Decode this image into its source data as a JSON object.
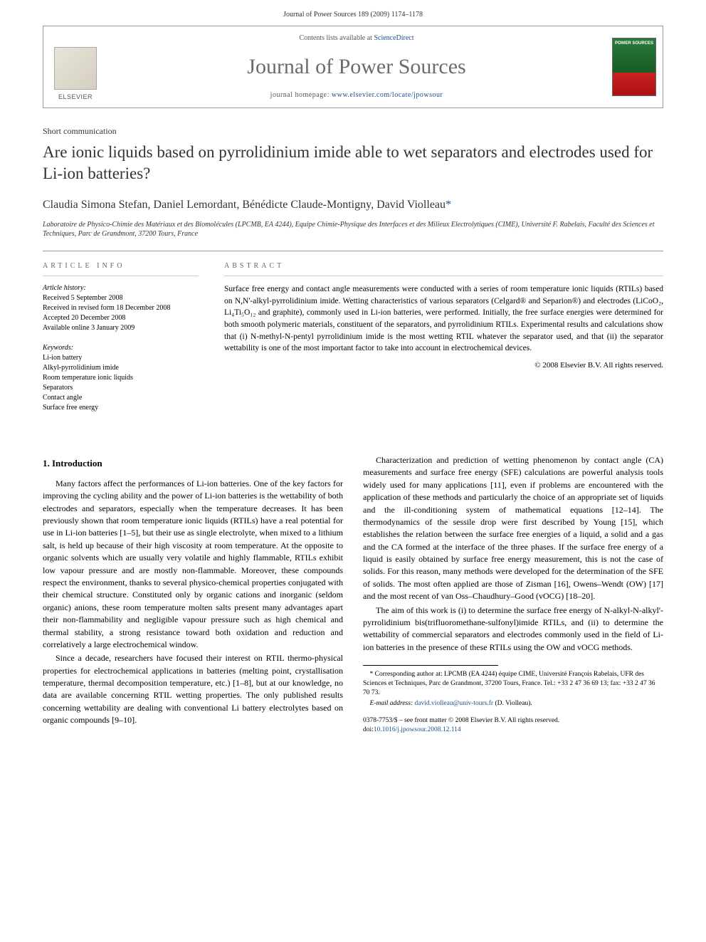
{
  "header": {
    "running_head": "Journal of Power Sources 189 (2009) 1174–1178"
  },
  "masthead": {
    "contents_prefix": "Contents lists available at ",
    "contents_link": "ScienceDirect",
    "journal_name": "Journal of Power Sources",
    "homepage_prefix": "journal homepage: ",
    "homepage_url": "www.elsevier.com/locate/jpowsour",
    "publisher": "ELSEVIER"
  },
  "article": {
    "type": "Short communication",
    "title": "Are ionic liquids based on pyrrolidinium imide able to wet separators and electrodes used for Li-ion batteries?",
    "authors": "Claudia Simona Stefan, Daniel Lemordant, Bénédicte Claude-Montigny, David Violleau",
    "corresponding_mark": "*",
    "affiliation": "Laboratoire de Physico-Chimie des Matériaux et des Biomolécules (LPCMB, EA 4244), Equipe Chimie-Physique des Interfaces et des Milieux Electrolytiques (CIME), Université F. Rabelais, Faculté des Sciences et Techniques, Parc de Grandmont, 37200 Tours, France"
  },
  "info": {
    "heading": "article info",
    "history_label": "Article history:",
    "history": [
      "Received 5 September 2008",
      "Received in revised form 18 December 2008",
      "Accepted 20 December 2008",
      "Available online 3 January 2009"
    ],
    "keywords_label": "Keywords:",
    "keywords": [
      "Li-ion battery",
      "Alkyl-pyrrolidinium imide",
      "Room temperature ionic liquids",
      "Separators",
      "Contact angle",
      "Surface free energy"
    ]
  },
  "abstract": {
    "heading": "abstract",
    "text": "Surface free energy and contact angle measurements were conducted with a series of room temperature ionic liquids (RTILs) based on N,N'-alkyl-pyrrolidinium imide. Wetting characteristics of various separators (Celgard® and Separion®) and electrodes (LiCoO₂, Li₄Ti₅O₁₂ and graphite), commonly used in Li-ion batteries, were performed. Initially, the free surface energies were determined for both smooth polymeric materials, constituent of the separators, and pyrrolidinium RTILs. Experimental results and calculations show that (i) N-methyl-N-pentyl pyrrolidinium imide is the most wetting RTIL whatever the separator used, and that (ii) the separator wettability is one of the most important factor to take into account in electrochemical devices.",
    "copyright": "© 2008 Elsevier B.V. All rights reserved."
  },
  "body": {
    "section_heading": "1.  Introduction",
    "p1": "Many factors affect the performances of Li-ion batteries. One of the key factors for improving the cycling ability and the power of Li-ion batteries is the wettability of both electrodes and separators, especially when the temperature decreases. It has been previously shown that room temperature ionic liquids (RTILs) have a real potential for use in Li-ion batteries [1–5], but their use as single electrolyte, when mixed to a lithium salt, is held up because of their high viscosity at room temperature. At the opposite to organic solvents which are usually very volatile and highly flammable, RTILs exhibit low vapour pressure and are mostly non-flammable. Moreover, these compounds respect the environment, thanks to several physico-chemical properties conjugated with their chemical structure. Constituted only by organic cations and inorganic (seldom organic) anions, these room temperature molten salts present many advantages apart their non-flammability and negligible vapour pressure such as high chemical and thermal stability, a strong resistance toward both oxidation and reduction and correlatively a large electrochemical window.",
    "p2": "Since a decade, researchers have focused their interest on RTIL thermo-physical properties for electrochemical applications in batteries (melting point, crystallisation temperature, thermal decomposition temperature, etc.) [1–8], but at our knowledge, no data are available concerning RTIL wetting properties. The only published results concerning wettability are dealing with conventional Li battery electrolytes based on organic compounds [9–10].",
    "p3": "Characterization and prediction of wetting phenomenon by contact angle (CA) measurements and surface free energy (SFE) calculations are powerful analysis tools widely used for many applications [11], even if problems are encountered with the application of these methods and particularly the choice of an appropriate set of liquids and the ill-conditioning system of mathematical equations [12–14]. The thermodynamics of the sessile drop were first described by Young [15], which establishes the relation between the surface free energies of a liquid, a solid and a gas and the CA formed at the interface of the three phases. If the surface free energy of a liquid is easily obtained by surface free energy measurement, this is not the case of solids. For this reason, many methods were developed for the determination of the SFE of solids. The most often applied are those of Zisman [16], Owens–Wendt (OW) [17] and the most recent of van Oss–Chaudhury–Good (vOCG) [18–20].",
    "p4": "The aim of this work is (i) to determine the surface free energy of N-alkyl-N-alkyl'-pyrrolidinium bis(trifluoromethane-sulfonyl)imide RTILs, and (ii) to determine the wettability of commercial separators and electrodes commonly used in the field of Li-ion batteries in the presence of these RTILs using the OW and vOCG methods."
  },
  "footnotes": {
    "corresponding": "* Corresponding author at: LPCMB (EA 4244) équipe CIME, Université François Rabelais, UFR des Sciences et Techniques, Parc de Grandmont, 37200 Tours, France. Tel.: +33 2 47 36 69 13; fax: +33 2 47 36 70 73.",
    "email_label": "E-mail address:",
    "email": "david.violleau@univ-tours.fr",
    "email_who": " (D. Violleau)."
  },
  "footer": {
    "issn_line": "0378-7753/$ – see front matter © 2008 Elsevier B.V. All rights reserved.",
    "doi_label": "doi:",
    "doi": "10.1016/j.jpowsour.2008.12.114"
  },
  "colors": {
    "link": "#1a4f8b",
    "text": "#000000",
    "muted": "#666666",
    "rule": "#999999"
  }
}
